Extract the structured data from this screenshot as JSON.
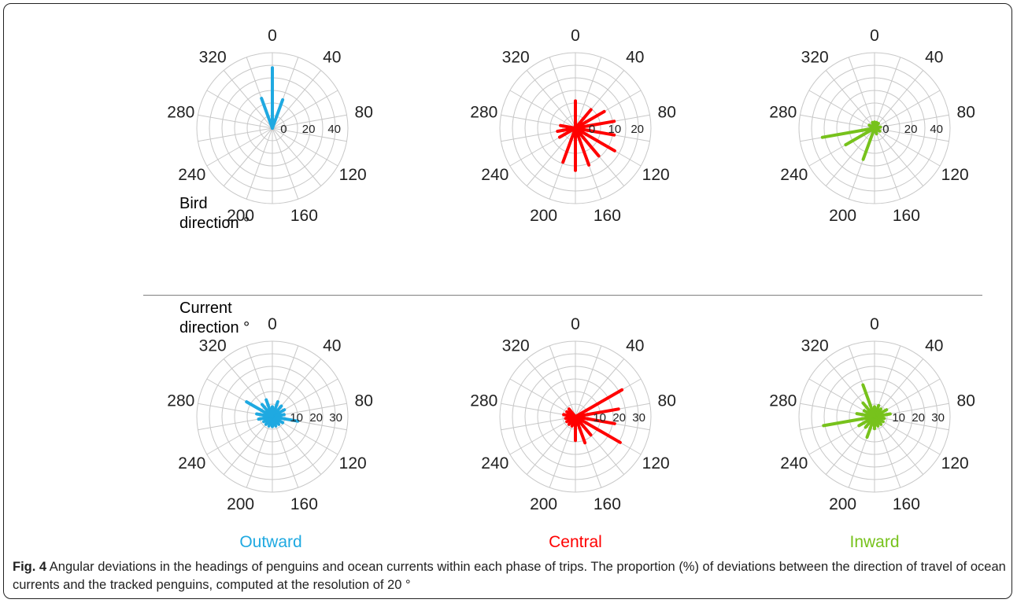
{
  "row_labels": {
    "bird_line1": "Bird",
    "bird_line2": "direction °",
    "current_line1": "Current",
    "current_line2": "direction °"
  },
  "phase_labels": [
    {
      "label": "Outward",
      "color": "#1fa9e1"
    },
    {
      "label": "Central",
      "color": "#ff0000"
    },
    {
      "label": "Inward",
      "color": "#77c21c"
    }
  ],
  "caption": {
    "fig_label": "Fig. 4",
    "text": " Angular deviations in the headings of penguins and ocean currents within each phase of trips. The proportion (%) of deviations between the direction of travel of ocean currents and the tracked penguins, computed at the resolution of 20 °"
  },
  "chart_data": [
    {
      "type": "polar-bar",
      "row": "Bird direction °",
      "phase": "Outward",
      "color": "#1fa9e1",
      "angle_ticks": [
        "0",
        "40",
        "80",
        "120",
        "160",
        "200",
        "240",
        "280",
        "320"
      ],
      "radial_ticks": [
        "0",
        "20",
        "40"
      ],
      "rmax": 50,
      "angles": [
        0,
        20,
        340
      ],
      "values": [
        40,
        20,
        21
      ]
    },
    {
      "type": "polar-bar",
      "row": "Bird direction °",
      "phase": "Central",
      "color": "#ff0000",
      "angle_ticks": [
        "0",
        "40",
        "80",
        "120",
        "160",
        "200",
        "240",
        "280",
        "320"
      ],
      "radial_ticks": [
        "0",
        "10",
        "20"
      ],
      "rmax": 25,
      "angles": [
        0,
        40,
        60,
        80,
        100,
        120,
        140,
        160,
        180,
        200,
        240,
        260,
        280
      ],
      "values": [
        9,
        8,
        11,
        13,
        13,
        15,
        12,
        13,
        14,
        12,
        6,
        6,
        5
      ]
    },
    {
      "type": "polar-bar",
      "row": "Bird direction °",
      "phase": "Inward",
      "color": "#77c21c",
      "angle_ticks": [
        "0",
        "40",
        "80",
        "120",
        "160",
        "200",
        "240",
        "280",
        "320"
      ],
      "radial_ticks": [
        "0",
        "20",
        "40"
      ],
      "rmax": 50,
      "angles": [
        200,
        240,
        260,
        0,
        20,
        40,
        80,
        120,
        160,
        300,
        340
      ],
      "values": [
        22,
        22,
        35,
        4,
        4,
        4,
        4,
        4,
        4,
        4,
        4
      ]
    },
    {
      "type": "polar-bar",
      "row": "Current direction °",
      "phase": "Outward",
      "color": "#1fa9e1",
      "angle_ticks": [
        "0",
        "40",
        "80",
        "120",
        "160",
        "200",
        "240",
        "280",
        "320"
      ],
      "radial_ticks": [
        "10",
        "20",
        "30"
      ],
      "rmax": 38,
      "angles": [
        0,
        20,
        40,
        60,
        80,
        100,
        120,
        140,
        160,
        180,
        200,
        220,
        240,
        260,
        280,
        300,
        320,
        340
      ],
      "values": [
        5,
        8,
        7,
        7,
        6,
        13,
        6,
        5,
        5,
        5,
        5,
        5,
        5,
        7,
        8,
        15,
        8,
        9
      ]
    },
    {
      "type": "polar-bar",
      "row": "Current direction °",
      "phase": "Central",
      "color": "#ff0000",
      "angle_ticks": [
        "0",
        "40",
        "80",
        "120",
        "160",
        "200",
        "240",
        "280",
        "320"
      ],
      "radial_ticks": [
        "10",
        "20",
        "30"
      ],
      "rmax": 38,
      "angles": [
        60,
        80,
        100,
        120,
        140,
        160,
        180,
        200,
        220,
        240,
        260,
        280,
        300,
        320
      ],
      "values": [
        27,
        22,
        20,
        26,
        12,
        14,
        12,
        5,
        5,
        5,
        5,
        6,
        5,
        5
      ]
    },
    {
      "type": "polar-bar",
      "row": "Current direction °",
      "phase": "Inward",
      "color": "#77c21c",
      "angle_ticks": [
        "0",
        "40",
        "80",
        "120",
        "160",
        "200",
        "240",
        "280",
        "320"
      ],
      "radial_ticks": [
        "10",
        "20",
        "30"
      ],
      "rmax": 38,
      "angles": [
        0,
        20,
        40,
        60,
        80,
        100,
        120,
        140,
        160,
        180,
        200,
        220,
        240,
        260,
        280,
        300,
        320,
        340
      ],
      "values": [
        5,
        6,
        5,
        7,
        8,
        5,
        5,
        5,
        5,
        6,
        11,
        7,
        9,
        26,
        9,
        6,
        9,
        17
      ]
    }
  ]
}
